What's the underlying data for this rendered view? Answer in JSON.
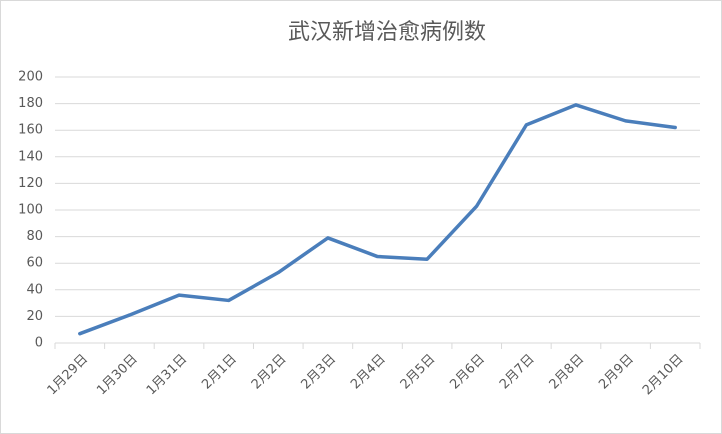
{
  "chart_data": {
    "type": "line",
    "title": "武汉新增治愈病例数",
    "categories": [
      "1月29日",
      "1月30日",
      "1月31日",
      "2月1日",
      "2月2日",
      "2月3日",
      "2月4日",
      "2月5日",
      "2月6日",
      "2月7日",
      "2月8日",
      "2月9日",
      "2月10日"
    ],
    "values": [
      7,
      21,
      36,
      32,
      53,
      79,
      65,
      63,
      103,
      164,
      179,
      167,
      162
    ],
    "color": "#4a7ebb",
    "ylim": [
      0,
      200
    ],
    "yticks": [
      0,
      20,
      40,
      60,
      80,
      100,
      120,
      140,
      160,
      180,
      200
    ],
    "grid": true
  }
}
